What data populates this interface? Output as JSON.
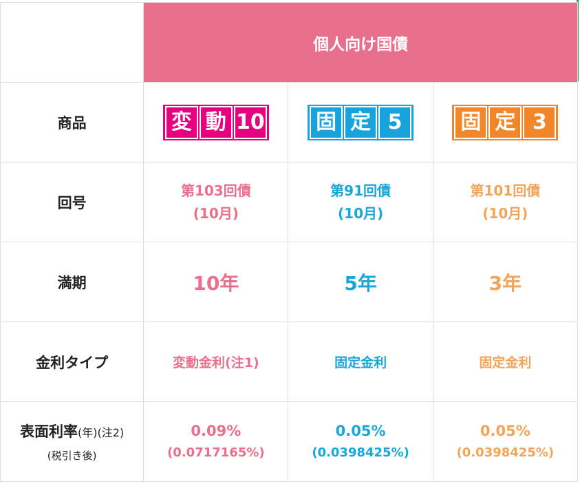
{
  "header": {
    "title": "個人向け国債"
  },
  "labels": {
    "product": "商品",
    "issue": "回号",
    "maturity": "満期",
    "rate_type": "金利タイプ",
    "coupon_main": "表面利率",
    "coupon_suffix": "(年)(注2)",
    "coupon_sub": "(税引き後)"
  },
  "products": [
    {
      "badge": [
        "変",
        "動",
        "10"
      ],
      "issue_no": "第103回債",
      "issue_month": "(10月)",
      "maturity": "10年",
      "rate_type": "変動金利(注1)",
      "coupon": "0.09%",
      "coupon_after_tax": "(0.0717165%)"
    },
    {
      "badge": [
        "固",
        "定",
        "5"
      ],
      "issue_no": "第91回債",
      "issue_month": "(10月)",
      "maturity": "5年",
      "rate_type": "固定金利",
      "coupon": "0.05%",
      "coupon_after_tax": "(0.0398425%)"
    },
    {
      "badge": [
        "固",
        "定",
        "3"
      ],
      "issue_no": "第101回債",
      "issue_month": "(10月)",
      "maturity": "3年",
      "rate_type": "固定金利",
      "coupon": "0.05%",
      "coupon_after_tax": "(0.0398425%)"
    }
  ],
  "colors": {
    "pink": "#e9708c",
    "blue": "#1aa6d6",
    "orange": "#f0a55a",
    "header_bg": "#e9708c"
  }
}
